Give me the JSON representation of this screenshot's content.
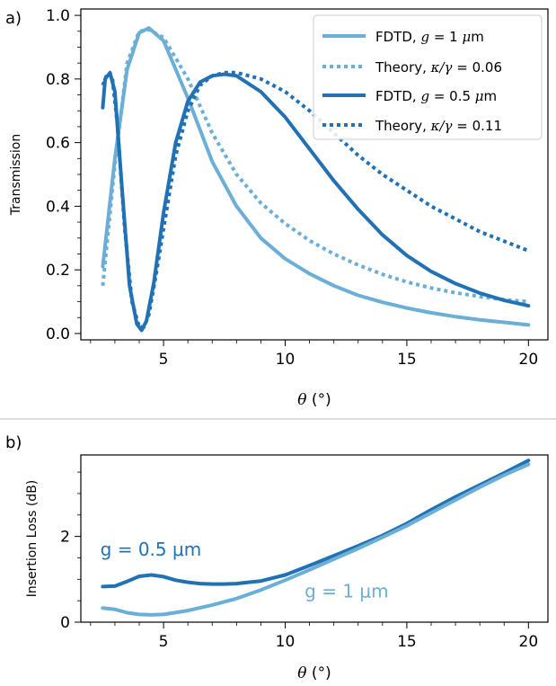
{
  "colors": {
    "light": "#6baed6",
    "dark": "#2171b5"
  },
  "chart_data": [
    {
      "panel_label": "a)",
      "type": "line",
      "xlabel": "θ (°)",
      "ylabel": "Transmission",
      "xlim": [
        1.6,
        20.8
      ],
      "ylim": [
        -0.02,
        1.02
      ],
      "xticks": [
        5,
        10,
        15,
        20
      ],
      "yticks": [
        0.0,
        0.2,
        0.4,
        0.6,
        0.8,
        1.0
      ],
      "ytick_labels": [
        "0.0",
        "0.2",
        "0.4",
        "0.6",
        "0.8",
        "1.0"
      ],
      "legend_position": "top-right",
      "series": [
        {
          "name": "FDTD, g = 1 μm",
          "color": "#6baed6",
          "style": "solid",
          "x": [
            2.5,
            3.0,
            3.5,
            4.0,
            4.4,
            5.0,
            6.0,
            7.0,
            8.0,
            9.0,
            10.0,
            11.0,
            12.0,
            13.0,
            14.0,
            15.0,
            16.0,
            17.0,
            18.0,
            19.0,
            20.0
          ],
          "y": [
            0.21,
            0.55,
            0.83,
            0.945,
            0.96,
            0.92,
            0.74,
            0.54,
            0.4,
            0.3,
            0.235,
            0.188,
            0.15,
            0.12,
            0.098,
            0.08,
            0.065,
            0.053,
            0.043,
            0.035,
            0.027
          ]
        },
        {
          "name": "Theory, κ/γ = 0.06",
          "color": "#6baed6",
          "style": "dotted",
          "x": [
            2.5,
            3.0,
            3.5,
            4.0,
            4.4,
            5.0,
            6.0,
            7.0,
            8.0,
            9.0,
            10.0,
            11.0,
            12.0,
            13.0,
            14.0,
            15.0,
            16.0,
            17.0,
            18.0,
            19.0,
            20.0
          ],
          "y": [
            0.15,
            0.53,
            0.85,
            0.95,
            0.955,
            0.93,
            0.8,
            0.63,
            0.5,
            0.41,
            0.345,
            0.292,
            0.25,
            0.215,
            0.186,
            0.162,
            0.143,
            0.128,
            0.116,
            0.106,
            0.1
          ]
        },
        {
          "name": "FDTD, g = 0.5 μm",
          "color": "#2171b5",
          "style": "solid",
          "x": [
            2.5,
            2.6,
            2.8,
            3.0,
            3.3,
            3.6,
            3.9,
            4.1,
            4.3,
            4.6,
            5.0,
            5.5,
            6.0,
            6.5,
            7.0,
            7.5,
            8.0,
            9.0,
            10.0,
            11.0,
            12.0,
            13.0,
            14.0,
            15.0,
            16.0,
            17.0,
            18.0,
            19.0,
            20.0
          ],
          "y": [
            0.71,
            0.8,
            0.82,
            0.76,
            0.45,
            0.15,
            0.03,
            0.01,
            0.04,
            0.16,
            0.38,
            0.6,
            0.73,
            0.79,
            0.81,
            0.815,
            0.81,
            0.76,
            0.68,
            0.58,
            0.48,
            0.39,
            0.31,
            0.245,
            0.195,
            0.157,
            0.127,
            0.104,
            0.087
          ]
        },
        {
          "name": "Theory, κ/γ = 0.11",
          "color": "#2171b5",
          "style": "dotted",
          "x": [
            2.5,
            2.7,
            2.9,
            3.1,
            3.4,
            3.7,
            4.0,
            4.2,
            4.4,
            4.7,
            5.0,
            5.5,
            6.0,
            6.5,
            7.0,
            7.5,
            8.0,
            9.0,
            10.0,
            11.0,
            12.0,
            13.0,
            14.0,
            15.0,
            16.0,
            17.0,
            18.0,
            19.0,
            20.0
          ],
          "y": [
            0.78,
            0.82,
            0.8,
            0.66,
            0.33,
            0.1,
            0.02,
            0.02,
            0.06,
            0.19,
            0.33,
            0.56,
            0.7,
            0.78,
            0.81,
            0.82,
            0.82,
            0.8,
            0.76,
            0.7,
            0.63,
            0.56,
            0.5,
            0.45,
            0.4,
            0.36,
            0.32,
            0.29,
            0.26
          ]
        }
      ]
    },
    {
      "panel_label": "b)",
      "type": "line",
      "xlabel": "θ (°)",
      "ylabel": "Insertion Loss (dB)",
      "xlim": [
        1.6,
        20.8
      ],
      "ylim": [
        0,
        3.9
      ],
      "xticks": [
        5,
        10,
        15,
        20
      ],
      "yticks": [
        0,
        2
      ],
      "ytick_labels": [
        "0",
        "2"
      ],
      "series": [
        {
          "name": "g = 0.5 μm",
          "color": "#2171b5",
          "style": "solid",
          "x": [
            2.5,
            3.0,
            3.5,
            4.0,
            4.5,
            5.0,
            5.5,
            6.0,
            6.5,
            7.0,
            7.5,
            8.0,
            8.5,
            9.0,
            10.0,
            11.0,
            12.0,
            13.0,
            14.0,
            15.0,
            16.0,
            17.0,
            18.0,
            19.0,
            20.0
          ],
          "y": [
            0.83,
            0.84,
            0.95,
            1.07,
            1.1,
            1.06,
            0.98,
            0.93,
            0.9,
            0.89,
            0.89,
            0.9,
            0.93,
            0.96,
            1.1,
            1.32,
            1.55,
            1.78,
            2.02,
            2.3,
            2.62,
            2.92,
            3.2,
            3.48,
            3.77
          ]
        },
        {
          "name": "g = 1 μm",
          "color": "#6baed6",
          "style": "solid",
          "x": [
            2.5,
            3.0,
            3.5,
            4.0,
            4.5,
            5.0,
            6.0,
            7.0,
            8.0,
            9.0,
            10.0,
            11.0,
            12.0,
            13.0,
            14.0,
            15.0,
            16.0,
            17.0,
            18.0,
            19.0,
            20.0
          ],
          "y": [
            0.33,
            0.3,
            0.22,
            0.18,
            0.17,
            0.18,
            0.27,
            0.4,
            0.55,
            0.75,
            0.98,
            1.22,
            1.47,
            1.72,
            1.98,
            2.25,
            2.55,
            2.85,
            3.15,
            3.43,
            3.68
          ]
        }
      ],
      "annotations": [
        {
          "text": "g = 0.5 μm",
          "color": "#2171b5",
          "x": 2.4,
          "y": 1.55
        },
        {
          "text": "g = 1 μm",
          "color": "#6baed6",
          "x": 10.8,
          "y": 0.58
        }
      ]
    }
  ]
}
